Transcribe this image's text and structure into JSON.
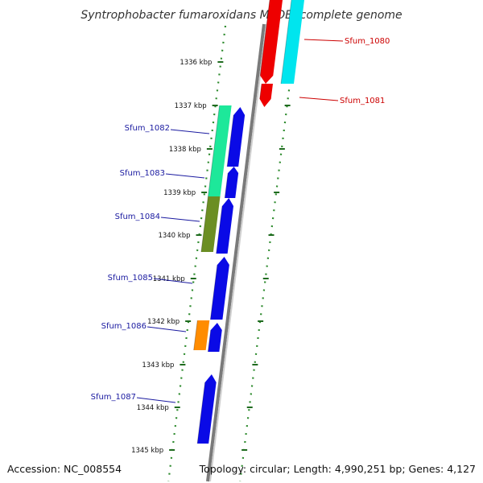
{
  "title": "Syntrophobacter fumaroxidans MPOB, complete genome",
  "footer": {
    "accession": "Accession: NC_008554",
    "topology": "Topology: circular; Length: 4,990,251 bp; Genes: 4,127"
  },
  "colors": {
    "backbone": "#8c8c8c",
    "dotted_track": "#2e8b2e",
    "tick": "#1f6b1f",
    "reverse_label": "#cc0000",
    "forward_label": "#1a1aa0",
    "cds_forward": "#0a0ae6",
    "cds_reverse": "#ee0000",
    "cyan": "#00e5ee",
    "green": "#1de89a",
    "olive": "#6b8e23",
    "orange": "#ff8c00"
  },
  "kbp_ticks": [
    "1336 kbp",
    "1337 kbp",
    "1338 kbp",
    "1339 kbp",
    "1340 kbp",
    "1341 kbp",
    "1342 kbp",
    "1343 kbp",
    "1344 kbp",
    "1345 kbp"
  ],
  "genes_reverse": [
    {
      "label": "Sfum_1080"
    },
    {
      "label": "Sfum_1081"
    }
  ],
  "genes_forward": [
    {
      "label": "Sfum_1082"
    },
    {
      "label": "Sfum_1083"
    },
    {
      "label": "Sfum_1084"
    },
    {
      "label": "Sfum_1085"
    },
    {
      "label": "Sfum_1086"
    },
    {
      "label": "Sfum_1087"
    }
  ]
}
